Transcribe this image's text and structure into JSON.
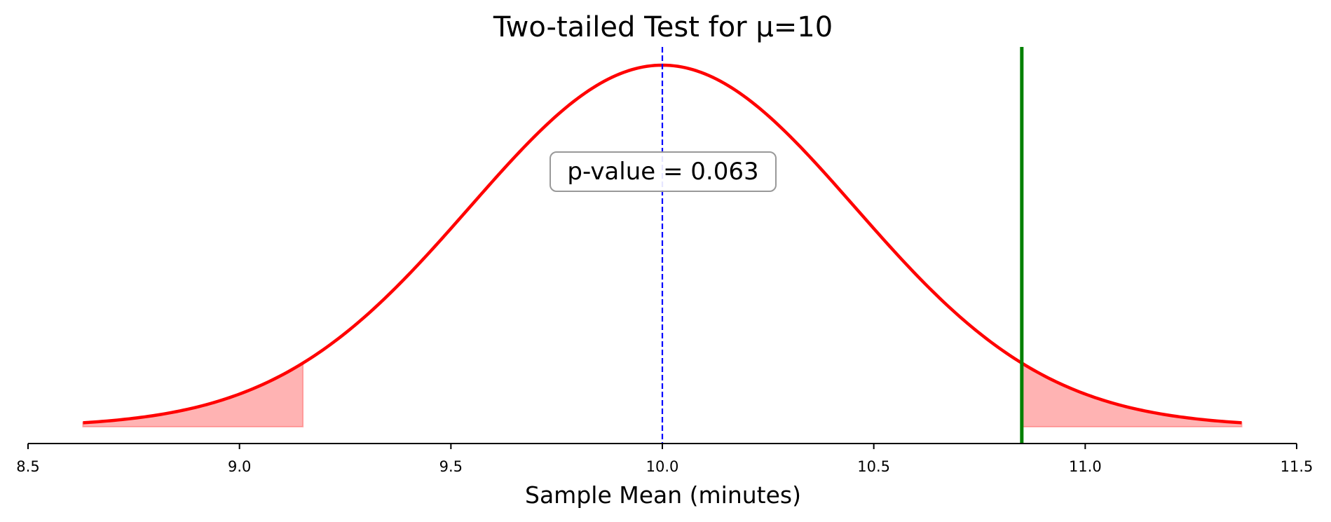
{
  "chart_data": {
    "type": "line",
    "title": "Two-tailed Test for μ=10",
    "xlabel": "Sample Mean (minutes)",
    "ylabel": "",
    "xlim": [
      8.5,
      11.5
    ],
    "x_ticks": [
      8.5,
      9.0,
      9.5,
      10.0,
      10.5,
      11.0,
      11.5
    ],
    "x_tick_labels": [
      "8.5",
      "9.0",
      "9.5",
      "10.0",
      "10.5",
      "11.0",
      "11.5"
    ],
    "y_axis_visible": false,
    "grid": false,
    "distribution": {
      "name": "sampling distribution of the mean",
      "family": "normal",
      "mean": 10.0,
      "std": 0.456,
      "x_min": 8.63,
      "x_max": 11.37,
      "color": "#ff0000"
    },
    "rejection_regions": [
      {
        "side": "left",
        "from": 8.63,
        "to": 9.15,
        "color": "#ff9999"
      },
      {
        "side": "right",
        "from": 10.85,
        "to": 11.37,
        "color": "#ff9999"
      }
    ],
    "reference_lines": [
      {
        "name": "null-mean",
        "x": 10.0,
        "style": "dashed",
        "color": "#0000ff"
      },
      {
        "name": "sample-mean",
        "x": 10.85,
        "style": "solid",
        "color": "#008000"
      }
    ],
    "annotation": {
      "text": "p-value = 0.063",
      "x": 10.0
    }
  }
}
